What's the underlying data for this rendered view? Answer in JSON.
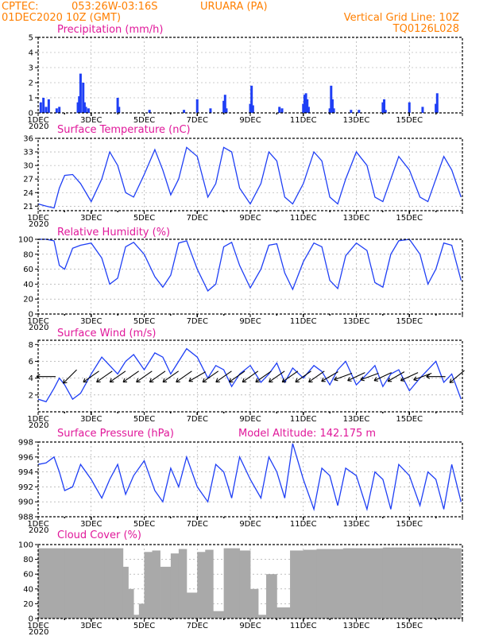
{
  "header": {
    "source": "CPTEC:",
    "coords": "053:26W-03:16S",
    "location": "URUARA (PA)",
    "datetime": "01DEC2020 10Z (GMT)",
    "grid_note": "Vertical Grid Line: 10Z",
    "model_code": "TQ0126L028",
    "model_altitude": "Model Altitude: 142.175 m"
  },
  "colors": {
    "header": "#ff7f00",
    "panel_title": "#e0189a",
    "series": "#1f3ff5",
    "cloud": "#a9a9a9"
  },
  "x_ticks": [
    "1DEC",
    "3DEC",
    "5DEC",
    "7DEC",
    "9DEC",
    "11DEC",
    "13DEC",
    "15DEC"
  ],
  "year_label": "2020",
  "chart_data": [
    {
      "type": "bar",
      "title": "Precipitation (mm/h)",
      "ylim": [
        0,
        5
      ],
      "yticks": [
        0,
        1,
        2,
        3,
        4,
        5
      ],
      "x": [
        0.1,
        0.2,
        0.3,
        0.4,
        0.7,
        0.8,
        1.5,
        1.55,
        1.6,
        1.7,
        1.75,
        1.8,
        1.9,
        3.0,
        3.05,
        4.2,
        5.5,
        6.0,
        6.5,
        7.0,
        7.05,
        7.1,
        8.0,
        8.05,
        8.1,
        9.1,
        9.2,
        10.0,
        10.05,
        10.1,
        10.15,
        10.2,
        11.0,
        11.05,
        11.1,
        11.15,
        11.8,
        12.1,
        13.0,
        13.05,
        13.1,
        14.0,
        14.5,
        15.0,
        15.05
      ],
      "values": [
        0.7,
        1.0,
        0.4,
        0.9,
        0.3,
        0.4,
        0.7,
        1.1,
        2.6,
        2.0,
        0.7,
        0.4,
        0.3,
        1.0,
        0.4,
        0.2,
        0.2,
        0.9,
        0.3,
        0.8,
        1.2,
        0.3,
        0.6,
        1.8,
        0.5,
        0.4,
        0.3,
        0.6,
        1.2,
        1.3,
        0.9,
        0.4,
        0.3,
        1.8,
        0.9,
        0.3,
        0.2,
        0.2,
        0.7,
        0.9,
        0.2,
        0.7,
        0.4,
        0.6,
        1.3
      ]
    },
    {
      "type": "line",
      "title": "Surface Temperature (nC)",
      "ylim": [
        20,
        36
      ],
      "yticks": [
        21,
        24,
        27,
        30,
        33,
        36
      ],
      "x": [
        0,
        0.3,
        0.6,
        0.8,
        1.0,
        1.3,
        1.6,
        2.0,
        2.4,
        2.7,
        3.0,
        3.3,
        3.6,
        4.0,
        4.4,
        4.7,
        5.0,
        5.3,
        5.6,
        6.0,
        6.4,
        6.7,
        7.0,
        7.3,
        7.6,
        8.0,
        8.4,
        8.7,
        9.0,
        9.3,
        9.6,
        10.0,
        10.4,
        10.7,
        11.0,
        11.3,
        11.6,
        12.0,
        12.4,
        12.7,
        13.0,
        13.3,
        13.6,
        14.0,
        14.4,
        14.7,
        15.0,
        15.3,
        15.6,
        15.95
      ],
      "values": [
        21.5,
        21,
        20.6,
        25,
        27.8,
        28,
        26,
        22,
        27,
        33,
        30,
        24,
        23,
        28,
        33.5,
        29,
        23.5,
        27,
        34,
        32,
        23,
        26,
        34,
        33,
        25,
        21.5,
        26,
        33,
        31,
        23,
        21.5,
        26,
        33,
        31,
        23,
        21.5,
        27,
        33,
        30,
        23,
        22,
        27,
        32,
        29,
        23,
        22,
        27,
        32,
        29,
        23
      ]
    },
    {
      "type": "line",
      "title": "Relative Humidity (%)",
      "ylim": [
        0,
        100
      ],
      "yticks": [
        0,
        20,
        40,
        60,
        80,
        100
      ],
      "x": [
        0,
        0.3,
        0.6,
        0.8,
        1.0,
        1.3,
        1.6,
        2.0,
        2.4,
        2.7,
        3.0,
        3.3,
        3.6,
        4.0,
        4.4,
        4.7,
        5.0,
        5.3,
        5.6,
        6.0,
        6.4,
        6.7,
        7.0,
        7.3,
        7.6,
        8.0,
        8.4,
        8.7,
        9.0,
        9.3,
        9.6,
        10.0,
        10.4,
        10.7,
        11.0,
        11.3,
        11.6,
        12.0,
        12.4,
        12.7,
        13.0,
        13.3,
        13.6,
        14.0,
        14.4,
        14.7,
        15.0,
        15.3,
        15.6,
        15.95
      ],
      "values": [
        100,
        100,
        98,
        65,
        60,
        88,
        92,
        95,
        75,
        40,
        48,
        90,
        96,
        80,
        50,
        36,
        52,
        95,
        98,
        60,
        31,
        40,
        90,
        96,
        65,
        35,
        60,
        92,
        94,
        55,
        33,
        70,
        95,
        90,
        45,
        34,
        78,
        95,
        85,
        42,
        36,
        80,
        98,
        100,
        80,
        40,
        60,
        95,
        92,
        45
      ]
    },
    {
      "type": "line",
      "title": "Surface Wind (m/s)",
      "ylim": [
        0,
        8.5
      ],
      "yticks": [
        2,
        4,
        6,
        8
      ],
      "x": [
        0,
        0.3,
        0.6,
        0.8,
        1.0,
        1.3,
        1.6,
        2.0,
        2.4,
        2.7,
        3.0,
        3.3,
        3.6,
        4.0,
        4.4,
        4.7,
        5.0,
        5.3,
        5.6,
        6.0,
        6.4,
        6.7,
        7.0,
        7.3,
        7.6,
        8.0,
        8.4,
        8.7,
        9.0,
        9.3,
        9.6,
        10.0,
        10.4,
        10.7,
        11.0,
        11.3,
        11.6,
        12.0,
        12.4,
        12.7,
        13.0,
        13.3,
        13.6,
        14.0,
        14.4,
        14.7,
        15.0,
        15.3,
        15.6,
        15.95
      ],
      "values": [
        1.5,
        1.2,
        2.8,
        4.0,
        3.2,
        1.5,
        2.2,
        4.5,
        6.5,
        5.5,
        4.5,
        6.0,
        6.8,
        5.0,
        7.0,
        6.5,
        4.5,
        6.0,
        7.5,
        6.5,
        4.0,
        5.5,
        5.0,
        3.0,
        4.5,
        5.5,
        3.5,
        4.5,
        5.8,
        3.5,
        5.2,
        4.0,
        5.5,
        4.8,
        3.2,
        5.0,
        6.0,
        3.2,
        4.5,
        5.5,
        3.0,
        4.5,
        5.0,
        2.5,
        4.0,
        5.0,
        6.0,
        3.5,
        4.5,
        1.5
      ]
    },
    {
      "type": "line",
      "title": "Surface Pressure (hPa)",
      "ylim": [
        988,
        998
      ],
      "yticks": [
        988,
        990,
        992,
        994,
        996,
        998
      ],
      "x": [
        0,
        0.3,
        0.6,
        0.8,
        1.0,
        1.3,
        1.6,
        2.0,
        2.4,
        2.7,
        3.0,
        3.3,
        3.6,
        4.0,
        4.4,
        4.7,
        5.0,
        5.3,
        5.6,
        6.0,
        6.4,
        6.7,
        7.0,
        7.3,
        7.6,
        8.0,
        8.4,
        8.7,
        9.0,
        9.3,
        9.6,
        10.0,
        10.4,
        10.7,
        11.0,
        11.3,
        11.6,
        12.0,
        12.4,
        12.7,
        13.0,
        13.3,
        13.6,
        14.0,
        14.4,
        14.7,
        15.0,
        15.3,
        15.6,
        15.95
      ],
      "values": [
        995,
        995.2,
        996,
        994,
        991.5,
        992,
        995,
        993,
        990.5,
        993,
        995,
        991,
        993.5,
        995.5,
        991.5,
        990,
        994.5,
        992,
        996,
        992,
        990,
        995,
        994,
        990.5,
        996,
        993,
        990.5,
        996,
        994,
        990.5,
        997.8,
        993,
        989,
        994.5,
        993.5,
        989.5,
        994.5,
        993.5,
        989,
        994,
        993,
        989,
        995,
        993.5,
        989.5,
        994,
        993,
        989,
        995,
        990
      ]
    },
    {
      "type": "bar",
      "title": "Cloud Cover (%)",
      "ylim": [
        0,
        100
      ],
      "yticks": [
        0,
        20,
        40,
        60,
        80,
        100
      ],
      "x": [
        0,
        0.5,
        1.0,
        1.5,
        2.0,
        2.5,
        3.0,
        3.2,
        3.4,
        3.6,
        3.8,
        4.0,
        4.3,
        4.6,
        5.0,
        5.3,
        5.6,
        6.0,
        6.3,
        6.6,
        7.0,
        7.3,
        7.6,
        8.0,
        8.3,
        8.6,
        9.0,
        9.5,
        10.0,
        10.5,
        11.0,
        11.5,
        12.0,
        12.5,
        13.0,
        13.5,
        14.0,
        14.5,
        15.0,
        15.5,
        15.95
      ],
      "values": [
        95,
        95,
        95,
        95,
        95,
        95,
        95,
        70,
        40,
        5,
        20,
        90,
        92,
        70,
        88,
        94,
        35,
        90,
        93,
        10,
        95,
        95,
        92,
        40,
        5,
        60,
        15,
        92,
        93,
        94,
        94,
        95,
        95,
        95,
        96,
        96,
        96,
        96,
        96,
        95,
        94
      ]
    }
  ],
  "wind_arrows": {
    "days": [
      0.3,
      1.2,
      2.0,
      2.5,
      3.0,
      3.5,
      4.0,
      4.5,
      5.0,
      5.5,
      6.0,
      6.5,
      7.0,
      7.5,
      8.0,
      8.5,
      9.0,
      9.5,
      10.0,
      10.5,
      11.0,
      11.5,
      12.0,
      12.5,
      13.0,
      13.5,
      14.0,
      14.5,
      15.0,
      15.8
    ],
    "toward_deg": [
      180,
      225,
      215,
      215,
      215,
      215,
      215,
      215,
      215,
      215,
      210,
      215,
      215,
      215,
      215,
      215,
      215,
      215,
      215,
      215,
      210,
      200,
      205,
      200,
      205,
      210,
      205,
      200,
      180,
      220
    ]
  }
}
